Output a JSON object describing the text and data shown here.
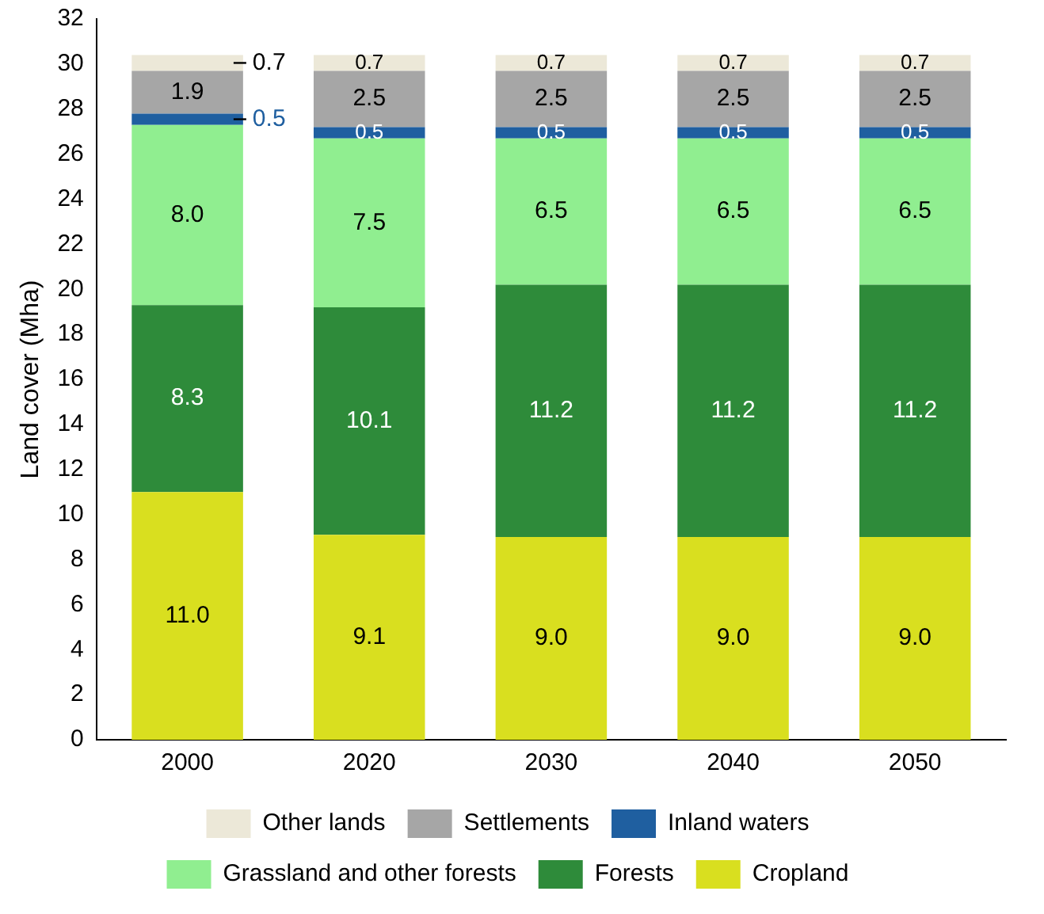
{
  "chart_data": {
    "type": "bar",
    "stacked": true,
    "ylabel": "Land cover (Mha)",
    "categories": [
      "2000",
      "2020",
      "2030",
      "2040",
      "2050"
    ],
    "series": [
      {
        "name": "Cropland",
        "color": "#d9df1f",
        "values": [
          11.0,
          9.1,
          9.0,
          9.0,
          9.0
        ],
        "value_labels": [
          "11.0",
          "9.1",
          "9.0",
          "9.0",
          "9.0"
        ]
      },
      {
        "name": "Forests",
        "color": "#2e8b3a",
        "values": [
          8.3,
          10.1,
          11.2,
          11.2,
          11.2
        ],
        "value_labels": [
          "8.3",
          "10.1",
          "11.2",
          "11.2",
          "11.2"
        ]
      },
      {
        "name": "Grassland and other forests",
        "color": "#90ee90",
        "values": [
          8.0,
          7.5,
          6.5,
          6.5,
          6.5
        ],
        "value_labels": [
          "8.0",
          "7.5",
          "6.5",
          "6.5",
          "6.5"
        ]
      },
      {
        "name": "Inland waters",
        "color": "#1f5fa0",
        "values": [
          0.5,
          0.5,
          0.5,
          0.5,
          0.5
        ],
        "value_labels": [
          "0.5",
          "0.5",
          "0.5",
          "0.5",
          "0.5"
        ]
      },
      {
        "name": "Settlements",
        "color": "#a6a6a6",
        "values": [
          1.9,
          2.5,
          2.5,
          2.5,
          2.5
        ],
        "value_labels": [
          "1.9",
          "2.5",
          "2.5",
          "2.5",
          "2.5"
        ]
      },
      {
        "name": "Other lands",
        "color": "#ece8d8",
        "values": [
          0.7,
          0.7,
          0.7,
          0.7,
          0.7
        ],
        "value_labels": [
          "0.7",
          "0.7",
          "0.7",
          "0.7",
          "0.7"
        ]
      }
    ],
    "ylim": [
      0,
      32
    ],
    "yticks": [
      0,
      2,
      4,
      6,
      8,
      10,
      12,
      14,
      16,
      18,
      20,
      22,
      24,
      26,
      28,
      30,
      32
    ],
    "grid": false,
    "legend": "bottom"
  }
}
